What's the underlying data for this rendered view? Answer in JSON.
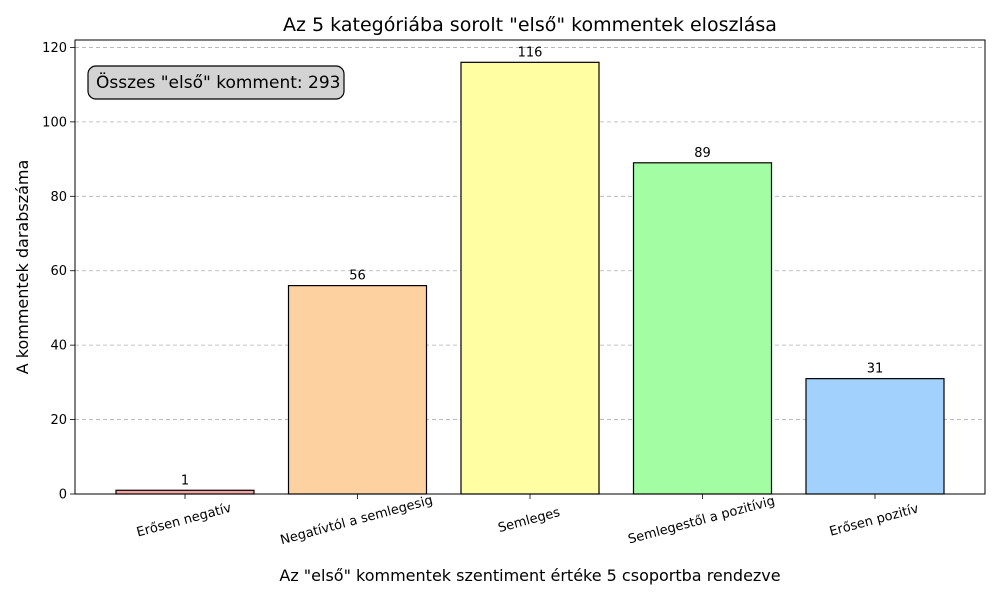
{
  "chart_data": {
    "type": "bar",
    "title": "Az 5 kategóriába sorolt \"első\" kommentek eloszlása",
    "xlabel": "Az \"első\" kommentek szentiment értéke 5 csoportba rendezve",
    "ylabel": "A kommentek darabszáma",
    "categories": [
      "Erősen negatív",
      "Negatívtól a semlegesig",
      "Semleges",
      "Semlegestől a pozitívig",
      "Erősen pozitív"
    ],
    "values": [
      1,
      56,
      116,
      89,
      31
    ],
    "colors": [
      "#f4a3a3",
      "#fed1a1",
      "#fffea3",
      "#a3fea3",
      "#a3d1fe"
    ],
    "ylim": [
      0,
      122
    ],
    "yticks": [
      0,
      20,
      40,
      60,
      80,
      100,
      120
    ],
    "grid": "y-dashed",
    "annotation": "Összes \"első\" komment: 293"
  }
}
